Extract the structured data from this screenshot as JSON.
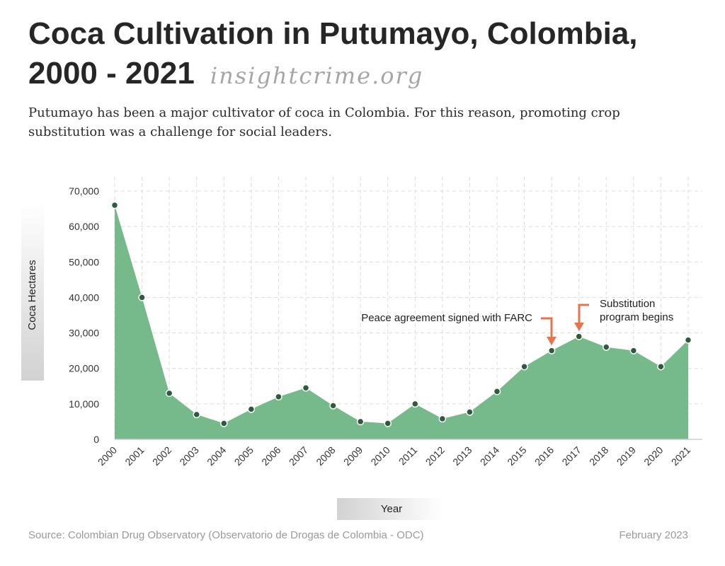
{
  "header": {
    "title_line1": "Coca Cultivation in Putumayo, Colombia,",
    "title_line2": "2000 - 2021",
    "brand": "insightcrime.org",
    "subtitle": "Putumayo has been a major cultivator of coca in Colombia. For this reason, promoting crop substitution was a challenge for social leaders."
  },
  "colors": {
    "area_fill": "#76b98a",
    "point": "#2f5a3e",
    "arrow": "#e8734a",
    "grid": "#dcdcdc"
  },
  "chart_data": {
    "type": "area",
    "title": "Coca Cultivation in Putumayo, Colombia, 2000 - 2021",
    "xlabel": "Year",
    "ylabel": "Coca Hectares",
    "ylim": [
      0,
      70000
    ],
    "yticks": [
      0,
      10000,
      20000,
      30000,
      40000,
      50000,
      60000,
      70000
    ],
    "ytick_labels": [
      "0",
      "10,000",
      "20,000",
      "30,000",
      "40,000",
      "50,000",
      "60,000",
      "70,000"
    ],
    "categories": [
      "2000",
      "2001",
      "2002",
      "2003",
      "2004",
      "2005",
      "2006",
      "2007",
      "2008",
      "2009",
      "2010",
      "2011",
      "2012",
      "2013",
      "2014",
      "2015",
      "2016",
      "2017",
      "2018",
      "2019",
      "2020",
      "2021"
    ],
    "series": [
      {
        "name": "Coca Hectares",
        "values": [
          66000,
          40000,
          13000,
          7000,
          4500,
          8500,
          12000,
          14500,
          9500,
          5000,
          4500,
          10000,
          5800,
          7700,
          13500,
          20500,
          25000,
          29000,
          26000,
          25000,
          20500,
          28000
        ]
      }
    ],
    "grid": true,
    "annotations": [
      {
        "text": "Peace agreement signed with FARC",
        "x": "2016"
      },
      {
        "text_lines": [
          "Substitution",
          "program begins"
        ],
        "x": "2017"
      }
    ]
  },
  "footer": {
    "source": "Source: Colombian Drug Observatory (Observatorio de Drogas de Colombia - ODC)",
    "date": "February 2023"
  }
}
